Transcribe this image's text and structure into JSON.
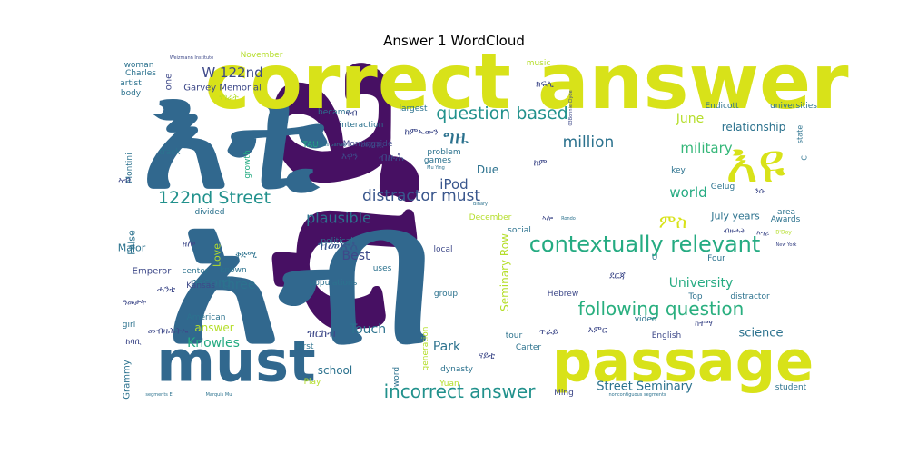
{
  "chart_data": {
    "type": "wordcloud",
    "title": "Answer 1 WordCloud",
    "colormap": "viridis",
    "words": [
      {
        "text": "ሳይ",
        "weight": 1.0,
        "color": "#471063"
      },
      {
        "text": "አብ",
        "weight": 0.92,
        "color": "#31688e"
      },
      {
        "text": "እቲ",
        "weight": 0.82,
        "color": "#31688e"
      },
      {
        "text": "correct answer",
        "weight": 0.72,
        "color": "#d8e219"
      },
      {
        "text": "passage",
        "weight": 0.62,
        "color": "#d8e219"
      },
      {
        "text": "must",
        "weight": 0.62,
        "color": "#31688e"
      },
      {
        "text": "እዩ",
        "weight": 0.42,
        "color": "#d8e219"
      },
      {
        "text": "contextually relevant",
        "weight": 0.3,
        "color": "#25ab82"
      },
      {
        "text": "following question",
        "weight": 0.24,
        "color": "#29af7f"
      },
      {
        "text": "incorrect answer",
        "weight": 0.24,
        "color": "#21918c"
      },
      {
        "text": "122nd Street",
        "weight": 0.24,
        "color": "#21918c"
      },
      {
        "text": "question based",
        "weight": 0.22,
        "color": "#21918c"
      },
      {
        "text": "ግዜ",
        "weight": 0.26,
        "color": "#2c728e"
      },
      {
        "text": "distractor must",
        "weight": 0.2,
        "color": "#39568c"
      },
      {
        "text": "million",
        "weight": 0.2,
        "color": "#2c728e"
      },
      {
        "text": "plausible",
        "weight": 0.16,
        "color": "#2c728e"
      },
      {
        "text": "iPod",
        "weight": 0.16,
        "color": "#39568c"
      },
      {
        "text": "University",
        "weight": 0.16,
        "color": "#25ab82"
      },
      {
        "text": "world",
        "weight": 0.15,
        "color": "#25ab82"
      },
      {
        "text": "military",
        "weight": 0.15,
        "color": "#35b779"
      },
      {
        "text": "June",
        "weight": 0.14,
        "color": "#b5de2b"
      },
      {
        "text": "W 122nd",
        "weight": 0.15,
        "color": "#3e4989"
      },
      {
        "text": "ምስ",
        "weight": 0.18,
        "color": "#d8e219"
      },
      {
        "text": "ዝመጽእ",
        "weight": 0.15,
        "color": "#39568c"
      },
      {
        "text": "Best",
        "weight": 0.14,
        "color": "#3e4989"
      },
      {
        "text": "record",
        "weight": 0.14,
        "color": "#2c728e"
      },
      {
        "text": "three",
        "weight": 0.14,
        "color": "#2c728e"
      },
      {
        "text": "Knowles",
        "weight": 0.14,
        "color": "#25ab82"
      },
      {
        "text": "Touch",
        "weight": 0.14,
        "color": "#2c728e"
      },
      {
        "text": "Park",
        "weight": 0.14,
        "color": "#2c728e"
      },
      {
        "text": "Seminary Row",
        "weight": 0.12,
        "color": "#b5de2b"
      },
      {
        "text": "Street Seminary",
        "weight": 0.13,
        "color": "#2c728e"
      },
      {
        "text": "science",
        "weight": 0.13,
        "color": "#2c728e"
      },
      {
        "text": "school",
        "weight": 0.12,
        "color": "#2c728e"
      },
      {
        "text": "relationship",
        "weight": 0.12,
        "color": "#2c728e"
      },
      {
        "text": "answer",
        "weight": 0.12,
        "color": "#b5de2b"
      },
      {
        "text": "July years",
        "weight": 0.11,
        "color": "#2c728e"
      },
      {
        "text": "Love",
        "weight": 0.11,
        "color": "#b5de2b"
      },
      {
        "text": "Major",
        "weight": 0.11,
        "color": "#2c728e"
      },
      {
        "text": "False",
        "weight": 0.11,
        "color": "#2c728e"
      },
      {
        "text": "Grammy",
        "weight": 0.1,
        "color": "#2c728e"
      },
      {
        "text": "Emperor",
        "weight": 0.1,
        "color": "#3e4989"
      },
      {
        "text": "one",
        "weight": 0.1,
        "color": "#3e4989"
      },
      {
        "text": "Montini",
        "weight": 0.09,
        "color": "#2c728e"
      },
      {
        "text": "woman",
        "weight": 0.09,
        "color": "#2c728e"
      },
      {
        "text": "Charles",
        "weight": 0.09,
        "color": "#2c728e"
      },
      {
        "text": "artist",
        "weight": 0.09,
        "color": "#2c728e"
      },
      {
        "text": "body",
        "weight": 0.09,
        "color": "#2c728e"
      },
      {
        "text": "November",
        "weight": 0.09,
        "color": "#b5de2b"
      },
      {
        "text": "became",
        "weight": 0.09,
        "color": "#2c728e"
      },
      {
        "text": "interaction",
        "weight": 0.09,
        "color": "#2c728e"
      },
      {
        "text": "largest",
        "weight": 0.09,
        "color": "#2c728e"
      },
      {
        "text": "problem",
        "weight": 0.09,
        "color": "#2c728e"
      },
      {
        "text": "Morningside",
        "weight": 0.09,
        "color": "#3e4989"
      },
      {
        "text": "TAU",
        "weight": 0.09,
        "color": "#25ab82"
      },
      {
        "text": "political",
        "weight": 0.09,
        "color": "#2c728e"
      },
      {
        "text": "divided",
        "weight": 0.09,
        "color": "#2c728e"
      },
      {
        "text": "growth",
        "weight": 0.09,
        "color": "#25ab82"
      },
      {
        "text": "track",
        "weight": 0.09,
        "color": "#2c728e"
      },
      {
        "text": "center",
        "weight": 0.09,
        "color": "#2c728e"
      },
      {
        "text": "known",
        "weight": 0.09,
        "color": "#2c728e"
      },
      {
        "text": "Kansas",
        "weight": 0.09,
        "color": "#3e4989"
      },
      {
        "text": "American",
        "weight": 0.09,
        "color": "#2c728e"
      },
      {
        "text": "girl",
        "weight": 0.09,
        "color": "#2c728e"
      },
      {
        "text": "First",
        "weight": 0.09,
        "color": "#2c728e"
      },
      {
        "text": "Play",
        "weight": 0.09,
        "color": "#b5de2b"
      },
      {
        "text": "word",
        "weight": 0.09,
        "color": "#2c728e"
      },
      {
        "text": "local",
        "weight": 0.09,
        "color": "#3e4989"
      },
      {
        "text": "uses",
        "weight": 0.09,
        "color": "#2c728e"
      },
      {
        "text": "populations",
        "weight": 0.09,
        "color": "#2c728e"
      },
      {
        "text": "group",
        "weight": 0.09,
        "color": "#2c728e"
      },
      {
        "text": "generation",
        "weight": 0.08,
        "color": "#b5de2b"
      },
      {
        "text": "dynasty",
        "weight": 0.09,
        "color": "#2c728e"
      },
      {
        "text": "Yuan",
        "weight": 0.09,
        "color": "#b5de2b"
      },
      {
        "text": "tour",
        "weight": 0.09,
        "color": "#2c728e"
      },
      {
        "text": "Carter",
        "weight": 0.09,
        "color": "#2c728e"
      },
      {
        "text": "Ming",
        "weight": 0.09,
        "color": "#3e4989"
      },
      {
        "text": "Hebrew",
        "weight": 0.09,
        "color": "#3e4989"
      },
      {
        "text": "social",
        "weight": 0.09,
        "color": "#2c728e"
      },
      {
        "text": "December",
        "weight": 0.09,
        "color": "#b5de2b"
      },
      {
        "text": "games",
        "weight": 0.09,
        "color": "#2c728e"
      },
      {
        "text": "music",
        "weight": 0.09,
        "color": "#b5de2b"
      },
      {
        "text": "Due",
        "weight": 0.09,
        "color": "#2c728e"
      },
      {
        "text": "U",
        "weight": 0.12,
        "color": "#2c728e"
      },
      {
        "text": "Four",
        "weight": 0.09,
        "color": "#2c728e"
      },
      {
        "text": "Top",
        "weight": 0.09,
        "color": "#2c728e"
      },
      {
        "text": "distractor",
        "weight": 0.09,
        "color": "#2c728e"
      },
      {
        "text": "video",
        "weight": 0.09,
        "color": "#2c728e"
      },
      {
        "text": "English",
        "weight": 0.09,
        "color": "#3e4989"
      },
      {
        "text": "student",
        "weight": 0.09,
        "color": "#2c728e"
      },
      {
        "text": "key",
        "weight": 0.09,
        "color": "#2c728e"
      },
      {
        "text": "area",
        "weight": 0.09,
        "color": "#2c728e"
      },
      {
        "text": "Awards",
        "weight": 0.09,
        "color": "#2c728e"
      },
      {
        "text": "Gelug",
        "weight": 0.09,
        "color": "#2c728e"
      },
      {
        "text": "Endicott",
        "weight": 0.09,
        "color": "#2c728e"
      },
      {
        "text": "universities",
        "weight": 0.09,
        "color": "#2c728e"
      },
      {
        "text": "C",
        "weight": 0.09,
        "color": "#2c728e"
      },
      {
        "text": "state",
        "weight": 0.08,
        "color": "#2c728e"
      },
      {
        "text": "B'Day",
        "weight": 0.08,
        "color": "#b5de2b"
      },
      {
        "text": "New York",
        "weight": 0.06,
        "color": "#3e4989"
      },
      {
        "text": "Rondo",
        "weight": 0.05,
        "color": "#2c728e"
      },
      {
        "text": "Binary",
        "weight": 0.05,
        "color": "#2c728e"
      },
      {
        "text": "Mu Ying",
        "weight": 0.05,
        "color": "#2c728e"
      },
      {
        "text": "Marcus Garvey",
        "weight": 0.05,
        "color": "#2c728e"
      },
      {
        "text": "03Bonnie Clyde",
        "weight": 0.05,
        "color": "#3e4989"
      },
      {
        "text": "Weizmann Institute",
        "weight": 0.05,
        "color": "#3e4989"
      },
      {
        "text": "segments E",
        "weight": 0.05,
        "color": "#2c728e"
      },
      {
        "text": "Marquis Mu",
        "weight": 0.05,
        "color": "#2c728e"
      },
      {
        "text": "noncontiguous segments",
        "weight": 0.05,
        "color": "#2c728e"
      },
      {
        "text": "Garvey Memorial",
        "weight": 0.05,
        "color": "#3e4989"
      },
      {
        "text": "መደበር",
        "weight": 0.1,
        "color": "#3e4989"
      },
      {
        "text": "ብዙሕ",
        "weight": 0.1,
        "color": "#3e4989"
      },
      {
        "text": "እዋን",
        "weight": 0.12,
        "color": "#3e4989"
      },
      {
        "text": "ከምኡውን",
        "weight": 0.1,
        "color": "#3e4989"
      },
      {
        "text": "ናብ",
        "weight": 0.1,
        "color": "#3e4989"
      },
      {
        "text": "ሃገራት",
        "weight": 0.1,
        "color": "#b5de2b"
      },
      {
        "text": "ክፍሊ",
        "weight": 0.09,
        "color": "#3e4989"
      },
      {
        "text": "ዝርከብ",
        "weight": 0.1,
        "color": "#3e4989"
      },
      {
        "text": "ከም",
        "weight": 0.12,
        "color": "#3e4989"
      },
      {
        "text": "ደርጃ",
        "weight": 0.1,
        "color": "#3e4989"
      },
      {
        "text": "እምር",
        "weight": 0.1,
        "color": "#3e4989"
      },
      {
        "text": "ጥራይ",
        "weight": 0.1,
        "color": "#3e4989"
      },
      {
        "text": "መብዛሕትኡ",
        "weight": 0.1,
        "color": "#3e4989"
      },
      {
        "text": "ከባቢ",
        "weight": 0.1,
        "color": "#3e4989"
      },
      {
        "text": "ቅድሚ",
        "weight": 0.09,
        "color": "#2c728e"
      },
      {
        "text": "ዘሎ",
        "weight": 0.1,
        "color": "#3e4989"
      },
      {
        "text": "ናይቲ",
        "weight": 0.1,
        "color": "#3e4989"
      },
      {
        "text": "ሓንቲ",
        "weight": 0.1,
        "color": "#3e4989"
      },
      {
        "text": "ኣብ",
        "weight": 0.1,
        "color": "#3e4989"
      },
      {
        "text": "ኣሎ",
        "weight": 0.1,
        "color": "#3e4989"
      },
      {
        "text": "ዓመታት",
        "weight": 0.08,
        "color": "#3e4989"
      },
      {
        "text": "ከተማ",
        "weight": 0.09,
        "color": "#3e4989"
      },
      {
        "text": "ንሱ",
        "weight": 0.1,
        "color": "#3e4989"
      },
      {
        "text": "ብዙሓት",
        "weight": 0.09,
        "color": "#3e4989"
      },
      {
        "text": "እግሪ",
        "weight": 0.09,
        "color": "#3e4989"
      },
      {
        "text": "ዝርከብ",
        "weight": 0.08,
        "color": "#3e4989"
      },
      {
        "text": "ኣመሪካ",
        "weight": 0.08,
        "color": "#3e4989"
      }
    ]
  }
}
